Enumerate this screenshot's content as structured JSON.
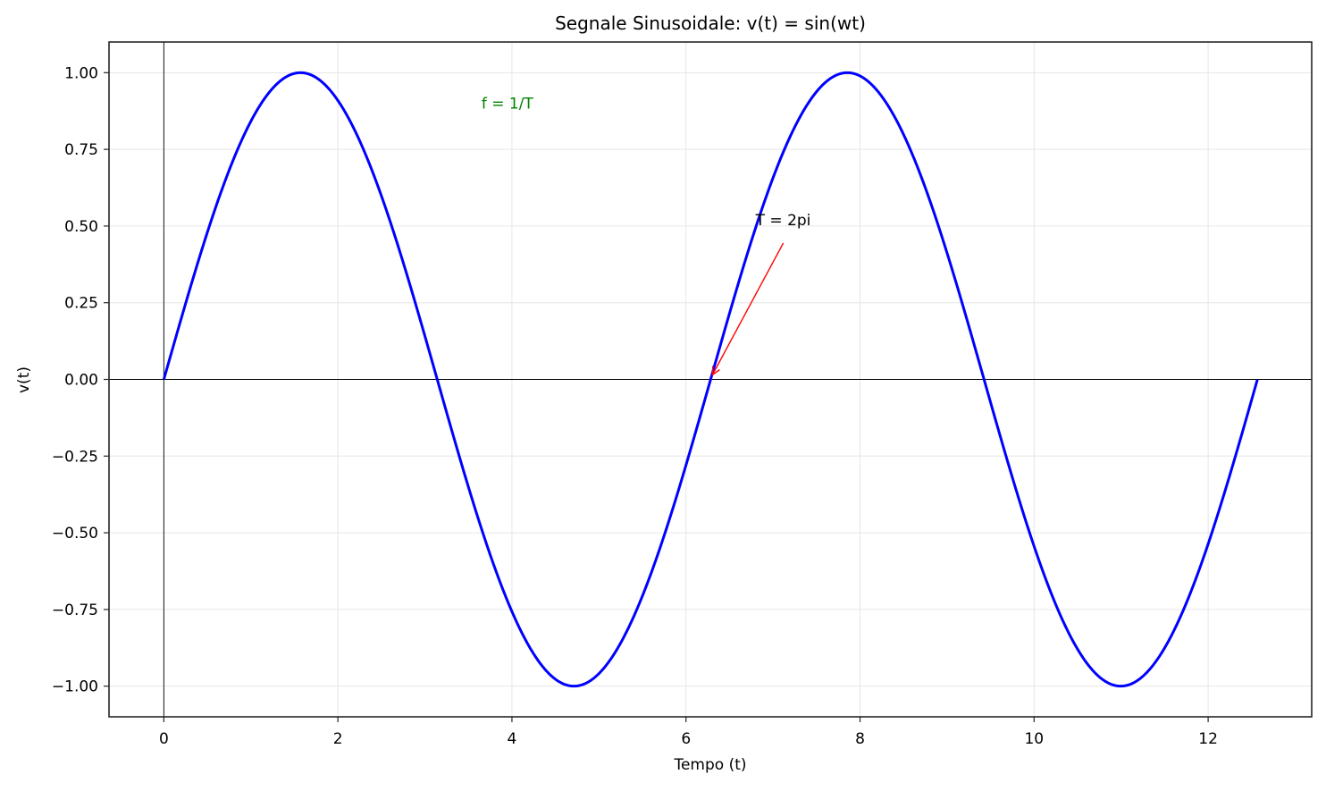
{
  "chart_data": {
    "type": "line",
    "title": "Segnale Sinusoidale: v(t) = sin(wt)",
    "xlabel": "Tempo (t)",
    "ylabel": "v(t)",
    "xlim": [
      -0.63,
      13.19
    ],
    "ylim": [
      -1.1,
      1.1
    ],
    "grid": true,
    "x_ticks": [
      0,
      2,
      4,
      6,
      8,
      10,
      12
    ],
    "x_tick_labels": [
      "0",
      "2",
      "4",
      "6",
      "8",
      "10",
      "12"
    ],
    "y_ticks": [
      1.0,
      0.75,
      0.5,
      0.25,
      0.0,
      -0.25,
      -0.5,
      -0.75,
      -1.0
    ],
    "y_tick_labels": [
      "1.00",
      "0.75",
      "0.50",
      "0.25",
      "0.00",
      "−0.25",
      "−0.50",
      "−0.75",
      "−1.00"
    ],
    "series": [
      {
        "name": "v(t) = sin(t)",
        "color": "#0000ff",
        "function": "sin(t)",
        "x_range": [
          0,
          12.566
        ],
        "x": [
          0,
          1.5708,
          3.1416,
          4.7124,
          6.2832,
          7.854,
          9.4248,
          10.9956,
          12.5664
        ],
        "values": [
          0,
          1,
          0,
          -1,
          0,
          1,
          0,
          -1,
          0
        ]
      }
    ],
    "reference_lines": [
      {
        "orientation": "horizontal",
        "value": 0,
        "color": "#000000"
      },
      {
        "orientation": "vertical",
        "value": 0,
        "color": "#000000"
      }
    ],
    "annotations": [
      {
        "text": "T = 2pi",
        "xy": [
          6.2832,
          0
        ],
        "xytext": [
          6.8,
          0.5
        ],
        "arrow_color": "#ff0000",
        "text_color": "#000000"
      },
      {
        "text": "f = 1/T",
        "x": 3.65,
        "y": 0.9,
        "color": "#008000"
      }
    ],
    "legend": null
  }
}
